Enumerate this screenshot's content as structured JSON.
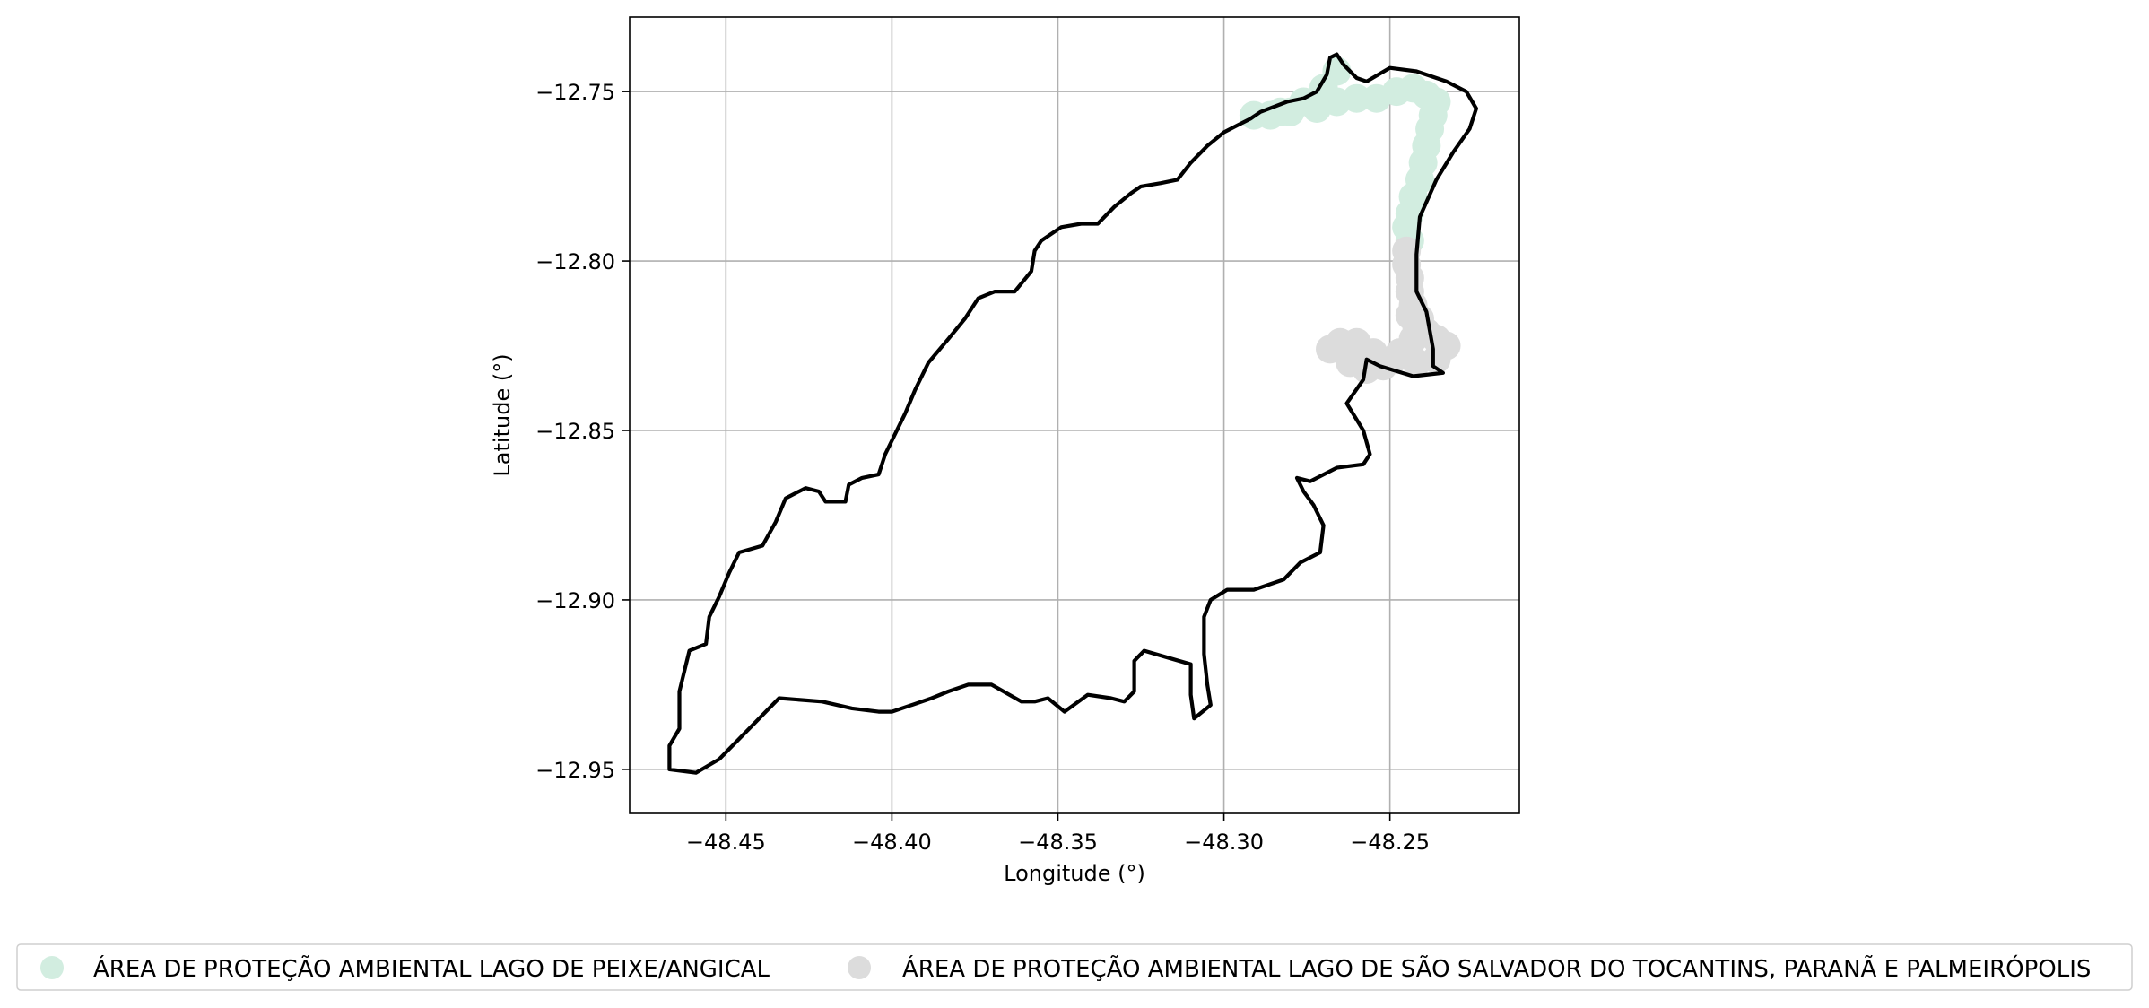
{
  "chart_data": {
    "type": "map",
    "xlabel": "Longitude (°)",
    "ylabel": "Latitude (°)",
    "xlim": [
      -48.479,
      -48.211
    ],
    "ylim": [
      -12.963,
      -12.728
    ],
    "grid": true,
    "x_ticks": [
      {
        "value": -48.45,
        "label": "−48.45"
      },
      {
        "value": -48.4,
        "label": "−48.40"
      },
      {
        "value": -48.35,
        "label": "−48.35"
      },
      {
        "value": -48.3,
        "label": "−48.30"
      },
      {
        "value": -48.25,
        "label": "−48.25"
      }
    ],
    "y_ticks": [
      {
        "value": -12.75,
        "label": "−12.75"
      },
      {
        "value": -12.8,
        "label": "−12.80"
      },
      {
        "value": -12.85,
        "label": "−12.85"
      },
      {
        "value": -12.9,
        "label": "−12.90"
      },
      {
        "value": -12.95,
        "label": "−12.95"
      }
    ],
    "legend_placement": "bottom-center, outside",
    "series": [
      {
        "name": "ÁREA DE PROTEÇÃO AMBIENTAL LAGO DE PEIXE/ANGICAL",
        "color": "#d2ede0",
        "points": [
          [
            -48.291,
            -12.757
          ],
          [
            -48.286,
            -12.757
          ],
          [
            -48.28,
            -12.756
          ],
          [
            -48.272,
            -12.755
          ],
          [
            -48.266,
            -12.753
          ],
          [
            -48.26,
            -12.752
          ],
          [
            -48.254,
            -12.752
          ],
          [
            -48.248,
            -12.75
          ],
          [
            -48.243,
            -12.749
          ],
          [
            -48.239,
            -12.751
          ],
          [
            -48.236,
            -12.753
          ],
          [
            -48.237,
            -12.757
          ],
          [
            -48.238,
            -12.761
          ],
          [
            -48.239,
            -12.766
          ],
          [
            -48.24,
            -12.771
          ],
          [
            -48.241,
            -12.776
          ],
          [
            -48.243,
            -12.781
          ],
          [
            -48.244,
            -12.786
          ],
          [
            -48.245,
            -12.79
          ],
          [
            -48.244,
            -12.794
          ],
          [
            -48.27,
            -12.749
          ],
          [
            -48.266,
            -12.744
          ],
          [
            -48.276,
            -12.753
          ],
          [
            -48.283,
            -12.756
          ]
        ]
      },
      {
        "name": "ÁREA DE PROTEÇÃO AMBIENTAL LAGO DE SÃO SALVADOR DO TOCANTINS, PARANÃ E PALMEIRÓPOLIS",
        "color": "#dcdcdc",
        "points": [
          [
            -48.245,
            -12.797
          ],
          [
            -48.245,
            -12.801
          ],
          [
            -48.244,
            -12.805
          ],
          [
            -48.244,
            -12.809
          ],
          [
            -48.243,
            -12.813
          ],
          [
            -48.244,
            -12.816
          ],
          [
            -48.242,
            -12.819
          ],
          [
            -48.239,
            -12.821
          ],
          [
            -48.236,
            -12.823
          ],
          [
            -48.233,
            -12.825
          ],
          [
            -48.236,
            -12.829
          ],
          [
            -48.242,
            -12.83
          ],
          [
            -48.249,
            -12.829
          ],
          [
            -48.255,
            -12.827
          ],
          [
            -48.26,
            -12.824
          ],
          [
            -48.265,
            -12.824
          ],
          [
            -48.268,
            -12.826
          ],
          [
            -48.262,
            -12.83
          ],
          [
            -48.257,
            -12.832
          ],
          [
            -48.252,
            -12.831
          ],
          [
            -48.247,
            -12.827
          ],
          [
            -48.243,
            -12.823
          ],
          [
            -48.241,
            -12.817
          ]
        ]
      }
    ],
    "boundary": [
      [
        -48.289,
        -12.756
      ],
      [
        -48.281,
        -12.753
      ],
      [
        -48.276,
        -12.752
      ],
      [
        -48.272,
        -12.75
      ],
      [
        -48.269,
        -12.745
      ],
      [
        -48.268,
        -12.74
      ],
      [
        -48.266,
        -12.739
      ],
      [
        -48.264,
        -12.742
      ],
      [
        -48.26,
        -12.746
      ],
      [
        -48.257,
        -12.747
      ],
      [
        -48.25,
        -12.743
      ],
      [
        -48.242,
        -12.744
      ],
      [
        -48.233,
        -12.747
      ],
      [
        -48.227,
        -12.75
      ],
      [
        -48.224,
        -12.755
      ],
      [
        -48.226,
        -12.761
      ],
      [
        -48.231,
        -12.768
      ],
      [
        -48.236,
        -12.776
      ],
      [
        -48.241,
        -12.787
      ],
      [
        -48.242,
        -12.798
      ],
      [
        -48.242,
        -12.809
      ],
      [
        -48.239,
        -12.815
      ],
      [
        -48.237,
        -12.826
      ],
      [
        -48.237,
        -12.831
      ],
      [
        -48.234,
        -12.833
      ],
      [
        -48.243,
        -12.834
      ],
      [
        -48.253,
        -12.831
      ],
      [
        -48.257,
        -12.829
      ],
      [
        -48.258,
        -12.835
      ],
      [
        -48.263,
        -12.842
      ],
      [
        -48.258,
        -12.85
      ],
      [
        -48.256,
        -12.857
      ],
      [
        -48.258,
        -12.86
      ],
      [
        -48.266,
        -12.861
      ],
      [
        -48.274,
        -12.865
      ],
      [
        -48.278,
        -12.864
      ],
      [
        -48.276,
        -12.868
      ],
      [
        -48.273,
        -12.872
      ],
      [
        -48.27,
        -12.878
      ],
      [
        -48.271,
        -12.886
      ],
      [
        -48.277,
        -12.889
      ],
      [
        -48.282,
        -12.894
      ],
      [
        -48.291,
        -12.897
      ],
      [
        -48.299,
        -12.897
      ],
      [
        -48.304,
        -12.9
      ],
      [
        -48.306,
        -12.905
      ],
      [
        -48.306,
        -12.916
      ],
      [
        -48.305,
        -12.925
      ],
      [
        -48.304,
        -12.931
      ],
      [
        -48.309,
        -12.935
      ],
      [
        -48.31,
        -12.928
      ],
      [
        -48.31,
        -12.919
      ],
      [
        -48.317,
        -12.917
      ],
      [
        -48.324,
        -12.915
      ],
      [
        -48.327,
        -12.918
      ],
      [
        -48.327,
        -12.927
      ],
      [
        -48.33,
        -12.93
      ],
      [
        -48.334,
        -12.929
      ],
      [
        -48.341,
        -12.928
      ],
      [
        -48.348,
        -12.933
      ],
      [
        -48.353,
        -12.929
      ],
      [
        -48.357,
        -12.93
      ],
      [
        -48.361,
        -12.93
      ],
      [
        -48.37,
        -12.925
      ],
      [
        -48.377,
        -12.925
      ],
      [
        -48.383,
        -12.927
      ],
      [
        -48.388,
        -12.929
      ],
      [
        -48.394,
        -12.931
      ],
      [
        -48.4,
        -12.933
      ],
      [
        -48.404,
        -12.933
      ],
      [
        -48.412,
        -12.932
      ],
      [
        -48.421,
        -12.93
      ],
      [
        -48.434,
        -12.929
      ],
      [
        -48.443,
        -12.938
      ],
      [
        -48.452,
        -12.947
      ],
      [
        -48.459,
        -12.951
      ],
      [
        -48.467,
        -12.95
      ],
      [
        -48.467,
        -12.943
      ],
      [
        -48.464,
        -12.938
      ],
      [
        -48.464,
        -12.927
      ],
      [
        -48.461,
        -12.915
      ],
      [
        -48.456,
        -12.913
      ],
      [
        -48.455,
        -12.905
      ],
      [
        -48.452,
        -12.899
      ],
      [
        -48.449,
        -12.892
      ],
      [
        -48.446,
        -12.886
      ],
      [
        -48.439,
        -12.884
      ],
      [
        -48.435,
        -12.877
      ],
      [
        -48.432,
        -12.87
      ],
      [
        -48.426,
        -12.867
      ],
      [
        -48.422,
        -12.868
      ],
      [
        -48.42,
        -12.871
      ],
      [
        -48.414,
        -12.871
      ],
      [
        -48.413,
        -12.866
      ],
      [
        -48.409,
        -12.864
      ],
      [
        -48.404,
        -12.863
      ],
      [
        -48.402,
        -12.857
      ],
      [
        -48.398,
        -12.849
      ],
      [
        -48.396,
        -12.845
      ],
      [
        -48.393,
        -12.838
      ],
      [
        -48.389,
        -12.83
      ],
      [
        -48.383,
        -12.823
      ],
      [
        -48.378,
        -12.817
      ],
      [
        -48.374,
        -12.811
      ],
      [
        -48.369,
        -12.809
      ],
      [
        -48.363,
        -12.809
      ],
      [
        -48.358,
        -12.803
      ],
      [
        -48.357,
        -12.797
      ],
      [
        -48.355,
        -12.794
      ],
      [
        -48.349,
        -12.79
      ],
      [
        -48.343,
        -12.789
      ],
      [
        -48.338,
        -12.789
      ],
      [
        -48.333,
        -12.784
      ],
      [
        -48.328,
        -12.78
      ],
      [
        -48.325,
        -12.778
      ],
      [
        -48.319,
        -12.777
      ],
      [
        -48.314,
        -12.776
      ],
      [
        -48.31,
        -12.771
      ],
      [
        -48.305,
        -12.766
      ],
      [
        -48.3,
        -12.762
      ],
      [
        -48.296,
        -12.76
      ],
      [
        -48.292,
        -12.758
      ],
      [
        -48.289,
        -12.756
      ]
    ]
  }
}
